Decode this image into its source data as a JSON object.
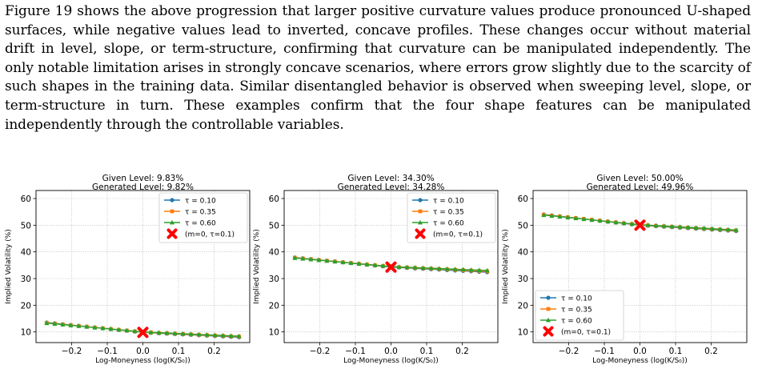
{
  "paragraph": "Figure 19 shows the above progression that larger positive curvature values produce pronounced U-shaped surfaces, while negative values lead to inverted, concave profiles. These changes occur without material drift in level, slope, or term-structure, confirming that curvature can be manipulated independently. The only notable limitation arises in strongly concave scenarios, where errors grow slightly due to the scarcity of such shapes in the training data. Similar disentangled behavior is observed when sweeping level, slope, or term-structure in turn. These examples confirm that the four shape features can be manipulated independently through the controllable variables.",
  "colors": {
    "tau_010": "#1f77b4",
    "tau_035": "#ff7f0e",
    "tau_060": "#2ca02c",
    "marker": "#ff0000"
  },
  "chart_data": [
    {
      "type": "line",
      "title": "Given Level: 9.83%",
      "subtitle": "Generated Level: 9.82%",
      "xlabel": "Log-Moneyness (log(K/S₀))",
      "ylabel": "Implied Volatility (%)",
      "xlim": [
        -0.3,
        0.3
      ],
      "ylim": [
        6,
        63
      ],
      "xticks": [
        -0.2,
        -0.1,
        0.0,
        0.1,
        0.2
      ],
      "xtick_labels": [
        "−0.2",
        "−0.1",
        "0.0",
        "0.1",
        "0.2"
      ],
      "yticks": [
        10,
        20,
        30,
        40,
        50,
        60
      ],
      "ytick_labels": [
        "10",
        "20",
        "30",
        "40",
        "50",
        "60"
      ],
      "grid": true,
      "legend_position": "upper right",
      "x_range": [
        -0.27,
        0.27
      ],
      "points_per_series": 25,
      "series": [
        {
          "name": "τ = 0.10",
          "marker": "circle",
          "y_start": 13.5,
          "y_mid": 9.83,
          "y_end": 8.0
        },
        {
          "name": "τ = 0.35",
          "marker": "square",
          "y_start": 13.4,
          "y_mid": 9.9,
          "y_end": 8.2
        },
        {
          "name": "τ = 0.60",
          "marker": "triangle",
          "y_start": 13.3,
          "y_mid": 10.0,
          "y_end": 8.4
        }
      ],
      "highlight": {
        "name": "(m=0, τ=0.1)",
        "x": 0.0,
        "y": 9.83
      }
    },
    {
      "type": "line",
      "title": "Given Level: 34.30%",
      "subtitle": "Generated Level: 34.28%",
      "xlabel": "Log-Moneyness (log(K/S₀))",
      "ylabel": "Implied Volatility (%)",
      "xlim": [
        -0.3,
        0.3
      ],
      "ylim": [
        6,
        63
      ],
      "xticks": [
        -0.2,
        -0.1,
        0.0,
        0.1,
        0.2
      ],
      "xtick_labels": [
        "−0.2",
        "−0.1",
        "0.0",
        "0.1",
        "0.2"
      ],
      "yticks": [
        10,
        20,
        30,
        40,
        50,
        60
      ],
      "ytick_labels": [
        "10",
        "20",
        "30",
        "40",
        "50",
        "60"
      ],
      "grid": true,
      "legend_position": "upper right",
      "x_range": [
        -0.27,
        0.27
      ],
      "points_per_series": 25,
      "series": [
        {
          "name": "τ = 0.10",
          "marker": "circle",
          "y_start": 37.9,
          "y_mid": 34.3,
          "y_end": 32.4
        },
        {
          "name": "τ = 0.35",
          "marker": "square",
          "y_start": 37.8,
          "y_mid": 34.4,
          "y_end": 32.7
        },
        {
          "name": "τ = 0.60",
          "marker": "triangle",
          "y_start": 37.7,
          "y_mid": 34.5,
          "y_end": 33.0
        }
      ],
      "highlight": {
        "name": "(m=0, τ=0.1)",
        "x": 0.0,
        "y": 34.3
      }
    },
    {
      "type": "line",
      "title": "Given Level: 50.00%",
      "subtitle": "Generated Level: 49.96%",
      "xlabel": "Log-Moneyness (log(K/S₀))",
      "ylabel": "Implied Volatility (%)",
      "xlim": [
        -0.3,
        0.3
      ],
      "ylim": [
        6,
        63
      ],
      "xticks": [
        -0.2,
        -0.1,
        0.0,
        0.1,
        0.2
      ],
      "xtick_labels": [
        "−0.2",
        "−0.1",
        "0.0",
        "0.1",
        "0.2"
      ],
      "yticks": [
        10,
        20,
        30,
        40,
        50,
        60
      ],
      "ytick_labels": [
        "10",
        "20",
        "30",
        "40",
        "50",
        "60"
      ],
      "grid": true,
      "legend_position": "lower left",
      "x_range": [
        -0.27,
        0.27
      ],
      "points_per_series": 25,
      "series": [
        {
          "name": "τ = 0.10",
          "marker": "circle",
          "y_start": 54.0,
          "y_mid": 50.0,
          "y_end": 47.8
        },
        {
          "name": "τ = 0.35",
          "marker": "square",
          "y_start": 53.9,
          "y_mid": 50.1,
          "y_end": 48.0
        },
        {
          "name": "τ = 0.60",
          "marker": "triangle",
          "y_start": 53.8,
          "y_mid": 50.2,
          "y_end": 48.2
        }
      ],
      "highlight": {
        "name": "(m=0, τ=0.1)",
        "x": 0.0,
        "y": 50.0
      }
    }
  ]
}
